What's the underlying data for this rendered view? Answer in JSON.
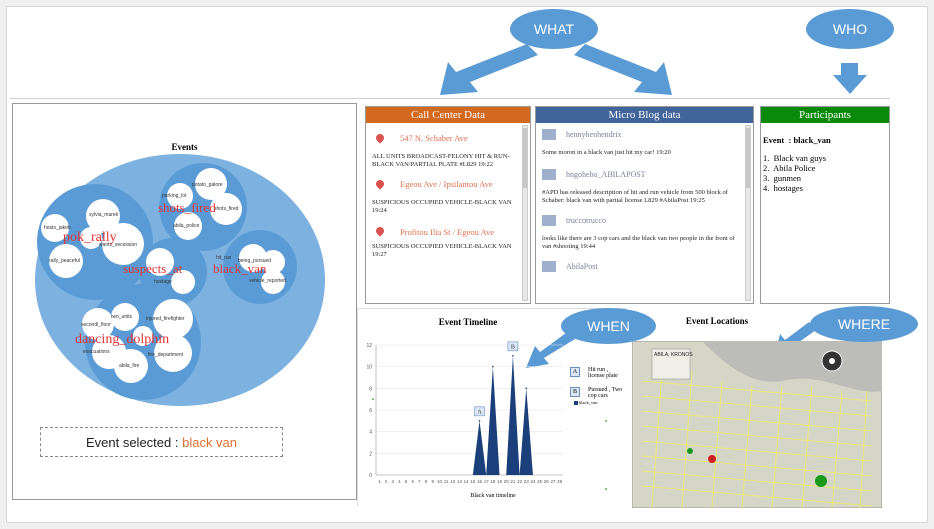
{
  "ovals": {
    "what": "WHAT",
    "who": "WHO",
    "when": "WHEN",
    "where": "WHERE"
  },
  "events_panel": {
    "title": "Events",
    "clusters": [
      {
        "label": "pok_rally",
        "members": [
          "sylvia_marek",
          "hosts_jakob",
          "rally_peaceful",
          "wants_secession"
        ]
      },
      {
        "label": "shots_fired",
        "members": [
          "potato_galore",
          "parking_lot",
          "shots_fired",
          "abila_police"
        ]
      },
      {
        "label": "suspects_at",
        "members": [
          "hit_run",
          "being_pursued",
          "hostage",
          "vehicle_reported"
        ]
      },
      {
        "label": "black_van",
        "members": [
          "black_van"
        ]
      },
      {
        "label": "dancing_dolphin",
        "members": [
          "two_units",
          "injured_firefighter",
          "secondi_floor",
          "evacuations",
          "fire_department",
          "abila_fire"
        ]
      }
    ],
    "selected_prefix": "Event selected : ",
    "selected_value": "black van"
  },
  "call_center": {
    "title": "Call Center Data",
    "entries": [
      {
        "address": "547 N. Schaber Ave",
        "text": "ALL UNITS BROADCAST-FELONY HIT & RUN-BLACK VAN/PARTIAL PLATE #L829     19:22"
      },
      {
        "address": "Egeou Ave / Ipsilantou Ave",
        "text": "SUSPICIOUS OCCUPIED VEHICLE-BLACK VAN     19:24"
      },
      {
        "address": "Profitou Ilia St / Egeou Ave",
        "text": "SUSPICIOUS OCCUPIED VEHICLE-BLACK VAN     19:27"
      }
    ]
  },
  "micro_blog": {
    "title": "Micro Blog data",
    "posts": [
      {
        "user": "hennyhenhendrix",
        "text": "Some moron in a black van just hit my car! 19:20"
      },
      {
        "user": "hngohebo_ABILAPOST",
        "text": "#APD has released description of hit and run vehicle from 500 block of Schaber: black van with partial license L829 #AbilaPost 19:25"
      },
      {
        "user": "truccotrucco",
        "text": "looks like there are 3 cop cars and the black van two people in the front of van #shooting 19:44"
      },
      {
        "user": "AbilaPost",
        "text": ""
      }
    ]
  },
  "participants": {
    "title": "Participants",
    "event_line": "Event  : black_van",
    "items": [
      "1.  Black van guys",
      "2.  Abila Police",
      "3.  gunmen",
      "4.  hostages"
    ]
  },
  "timeline": {
    "title": "Event Timeline",
    "marker_a": "A",
    "marker_b": "B",
    "legend": [
      {
        "box": "A",
        "text": "Hit run , license plate"
      },
      {
        "box": "B",
        "text": "Pursued , Two cop cars"
      },
      {
        "box": "",
        "text": "black_van"
      }
    ]
  },
  "locations": {
    "title": "Event Locations",
    "map_title": "ABILA, KRONOS"
  },
  "colors": {
    "oval": "#5b9bd5",
    "call_center": "#d2691e",
    "micro_blog": "#41659b",
    "participants": "#0a8a0a",
    "bubble": "#7db2e0",
    "bubble_inner": "#5b9bd5",
    "accent_text": "#e07030"
  },
  "chart_data": {
    "type": "area",
    "title": "Event Timeline",
    "xlabel": "Black van timeline",
    "ylabel": "",
    "x": [
      1,
      2,
      3,
      4,
      5,
      6,
      7,
      8,
      9,
      10,
      11,
      12,
      13,
      14,
      15,
      16,
      17,
      18,
      19,
      20,
      21,
      22,
      23,
      24,
      25,
      26,
      27,
      28
    ],
    "ylim": [
      0,
      12
    ],
    "yticks": [
      0,
      2,
      4,
      6,
      8,
      10,
      12
    ],
    "series": [
      {
        "name": "black_van",
        "values": [
          0,
          0,
          0,
          0,
          0,
          0,
          0,
          0,
          0,
          0,
          0,
          0,
          0,
          0,
          0,
          5,
          0,
          10,
          0,
          0,
          11,
          0,
          8,
          0,
          0,
          0,
          0,
          0
        ]
      }
    ]
  }
}
